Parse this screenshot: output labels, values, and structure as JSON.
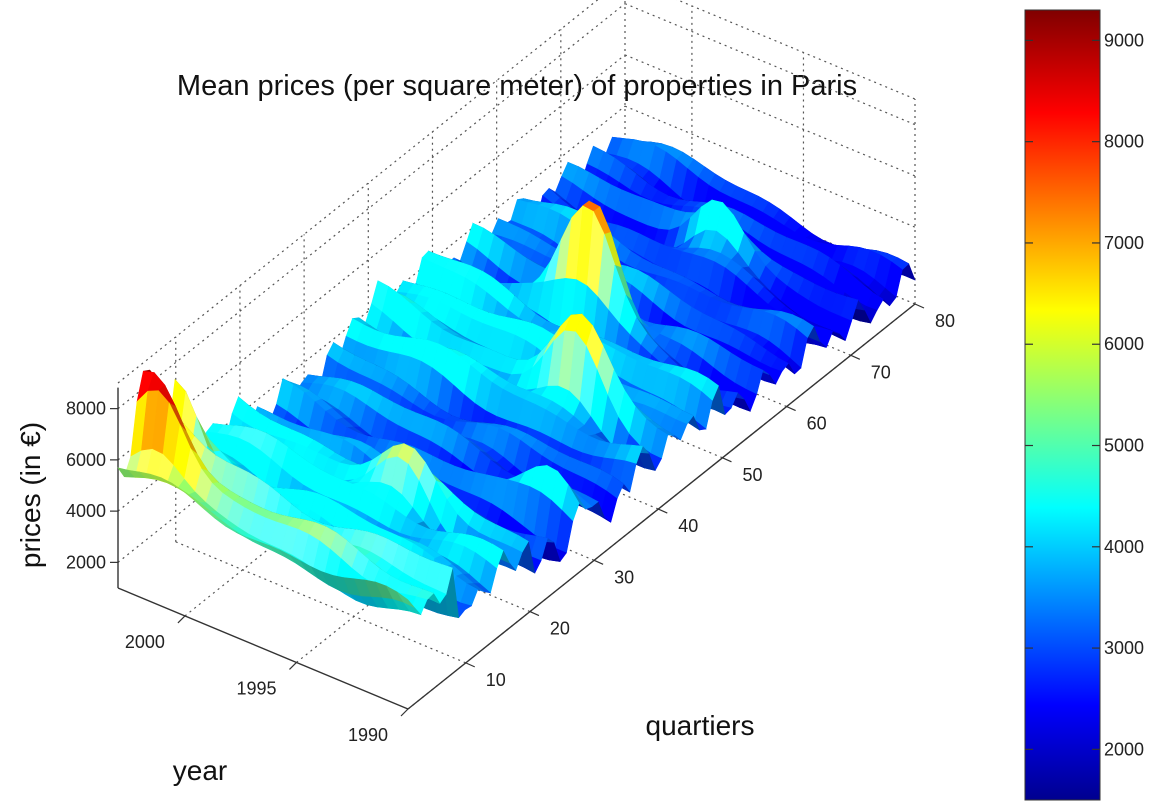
{
  "chart_data": {
    "type": "surface3d",
    "title": "Mean prices (per square meter) of properties in Paris",
    "xlabel": "quartiers",
    "ylabel": "year",
    "zlabel": "prices (in €)",
    "x_ticks": [
      10,
      20,
      30,
      40,
      50,
      60,
      70,
      80
    ],
    "y_ticks": [
      1990,
      1995,
      2000
    ],
    "z_ticks": [
      2000,
      4000,
      6000,
      8000
    ],
    "xlim": [
      1,
      80
    ],
    "ylim": [
      1990,
      2003
    ],
    "zlim": [
      1000,
      9000
    ],
    "grid": true,
    "colormap": "jet",
    "colorbar": {
      "ticks": [
        2000,
        3000,
        4000,
        5000,
        6000,
        7000,
        8000,
        9000
      ],
      "range": [
        1500,
        9300
      ],
      "placement": "right"
    },
    "colors": {
      "jet": [
        "#00008f",
        "#0000ff",
        "#00ffff",
        "#ffff00",
        "#ff0000",
        "#800000"
      ]
    },
    "quartier_peaks": [
      {
        "quartier": 4,
        "year": 2002,
        "price": 7800
      },
      {
        "quartier": 6,
        "year": 2003,
        "price": 7500
      },
      {
        "quartier": 10,
        "year": 2003,
        "price": 7200
      },
      {
        "quartier": 18,
        "year": 1995,
        "price": 5500
      },
      {
        "quartier": 28,
        "year": 1991,
        "price": 4500
      },
      {
        "quartier": 41,
        "year": 1994,
        "price": 6300
      },
      {
        "quartier": 54,
        "year": 1997,
        "price": 8000
      },
      {
        "quartier": 70,
        "year": 1996,
        "price": 5000
      }
    ],
    "quartier_base_levels": [
      {
        "from": 1,
        "to": 8,
        "price": 4500
      },
      {
        "from": 9,
        "to": 20,
        "price": 3500
      },
      {
        "from": 21,
        "to": 35,
        "price": 2600
      },
      {
        "from": 36,
        "to": 50,
        "price": 3300
      },
      {
        "from": 51,
        "to": 65,
        "price": 2600
      },
      {
        "from": 66,
        "to": 80,
        "price": 2200
      }
    ]
  }
}
